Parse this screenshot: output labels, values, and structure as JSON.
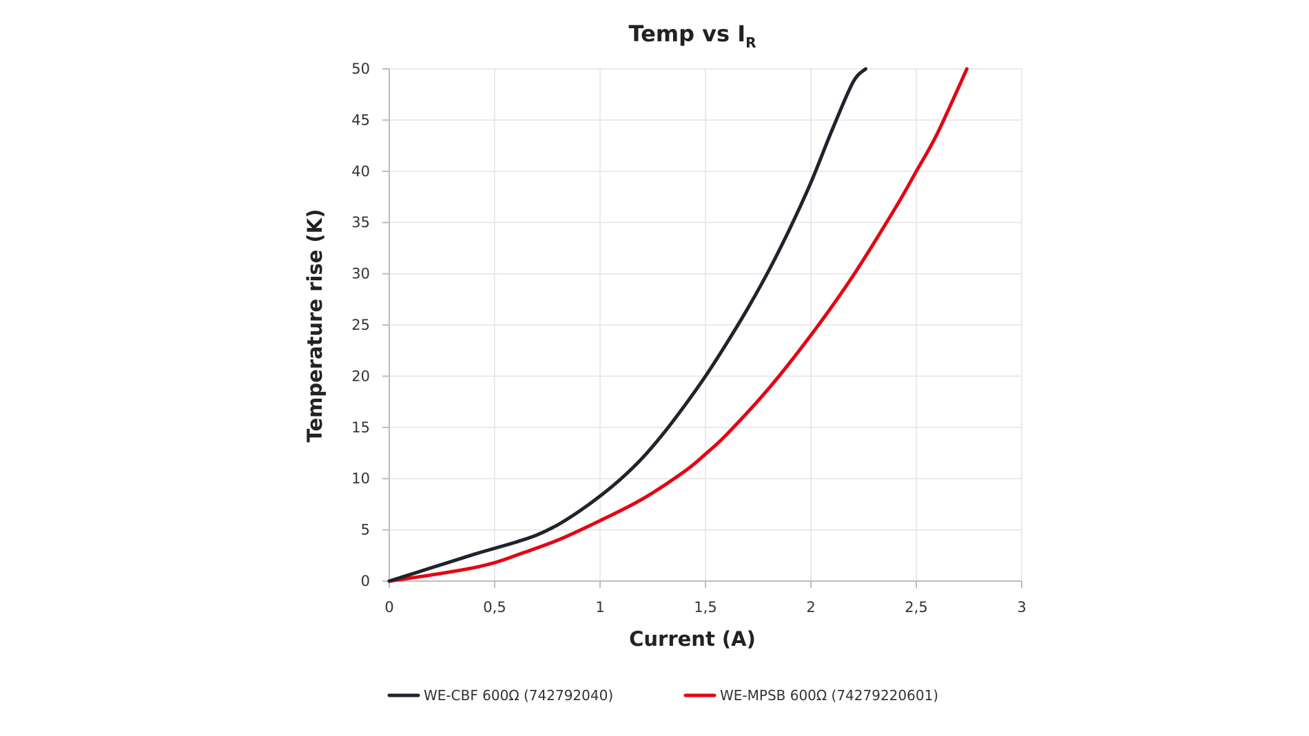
{
  "chart_data": {
    "type": "line",
    "title": "Temp vs I",
    "title_subscript": "R",
    "xlabel": "Current (A)",
    "ylabel": "Temperature rise (K)",
    "xlim": [
      0,
      3
    ],
    "ylim": [
      0,
      50
    ],
    "x_ticks": [
      0,
      0.5,
      1,
      1.5,
      2,
      2.5,
      3
    ],
    "x_tick_labels": [
      "0",
      "0,5",
      "1",
      "1,5",
      "2",
      "2,5",
      "3"
    ],
    "y_ticks": [
      0,
      5,
      10,
      15,
      20,
      25,
      30,
      35,
      40,
      45,
      50
    ],
    "y_tick_labels": [
      "0",
      "5",
      "10",
      "15",
      "20",
      "25",
      "30",
      "35",
      "40",
      "45",
      "50"
    ],
    "grid": true,
    "legend_position": "bottom",
    "series": [
      {
        "name": "WE-CBF 600Ω  (742792040)",
        "color": "#1f242b",
        "x": [
          0,
          0.2,
          0.4,
          0.5,
          0.6,
          0.7,
          0.8,
          0.9,
          1.0,
          1.1,
          1.2,
          1.3,
          1.4,
          1.5,
          1.6,
          1.7,
          1.8,
          1.9,
          2.0,
          2.1,
          2.2,
          2.26
        ],
        "y": [
          0,
          1.3,
          2.6,
          3.2,
          3.8,
          4.5,
          5.5,
          6.8,
          8.3,
          10.0,
          12.0,
          14.4,
          17.1,
          20.0,
          23.2,
          26.6,
          30.3,
          34.4,
          38.9,
          44.0,
          48.7,
          50
        ]
      },
      {
        "name": "WE-MPSB 600Ω  (74279220601)",
        "color": "#e30613",
        "x": [
          0,
          0.2,
          0.4,
          0.5,
          0.6,
          0.8,
          1.0,
          1.2,
          1.4,
          1.5,
          1.6,
          1.8,
          2.0,
          2.2,
          2.4,
          2.5,
          2.6,
          2.74
        ],
        "y": [
          0,
          0.6,
          1.3,
          1.8,
          2.5,
          4.0,
          5.9,
          8.0,
          10.7,
          12.4,
          14.3,
          18.8,
          24.0,
          29.8,
          36.4,
          40.0,
          43.7,
          50
        ]
      }
    ]
  }
}
